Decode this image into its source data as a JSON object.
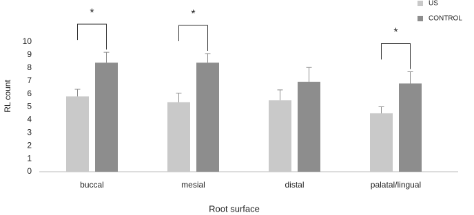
{
  "chart_data": {
    "type": "bar",
    "categories": [
      "buccal",
      "mesial",
      "distal",
      "palatal/lingual"
    ],
    "series": [
      {
        "name": "US",
        "color": "#c9c9c9",
        "values": [
          5.8,
          5.35,
          5.5,
          4.5
        ],
        "errors": [
          0.55,
          0.7,
          0.8,
          0.5
        ]
      },
      {
        "name": "CONTROL",
        "color": "#8d8d8d",
        "values": [
          8.4,
          8.4,
          6.93,
          6.8
        ],
        "errors": [
          0.8,
          0.7,
          1.1,
          0.9
        ]
      }
    ],
    "ylim": [
      0,
      10
    ],
    "yticks": [
      0,
      1,
      2,
      3,
      4,
      5,
      6,
      7,
      8,
      9,
      10
    ],
    "y_label": "RL count",
    "x_label": "Root surface",
    "significance": [
      {
        "category": "buccal",
        "label": "*"
      },
      {
        "category": "mesial",
        "label": "*"
      },
      {
        "category": "palatal/lingual",
        "label": "*"
      }
    ],
    "legend": "top-right"
  }
}
